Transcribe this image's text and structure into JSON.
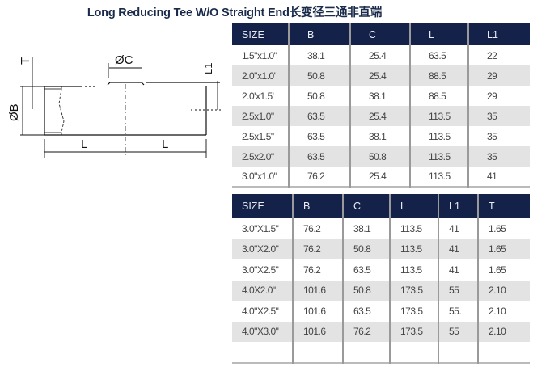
{
  "title": "Long Reducing Tee W/O Straight End长变径三通非直端",
  "drawing": {
    "labels": {
      "t": "T",
      "b": "ØB",
      "c": "ØC",
      "l1": "L1",
      "l_left": "L",
      "l_right": "L"
    }
  },
  "table1": {
    "headers": [
      "SIZE",
      "B",
      "C",
      "L",
      "L1"
    ],
    "rows": [
      [
        "1.5\"x1.0\"",
        "38.1",
        "25.4",
        "63.5",
        "22"
      ],
      [
        "2.0\"x1.0'",
        "50.8",
        "25.4",
        "88.5",
        "29"
      ],
      [
        "2.0'x1.5'",
        "50.8",
        "38.1",
        "88.5",
        "29"
      ],
      [
        "2.5x1.0\"",
        "63.5",
        "25.4",
        "113.5",
        "35"
      ],
      [
        "2.5x1.5\"",
        "63.5",
        "38.1",
        "113.5",
        "35"
      ],
      [
        "2.5x2.0\"",
        "63.5",
        "50.8",
        "113.5",
        "35"
      ],
      [
        "3.0\"x1.0\"",
        "76.2",
        "25.4",
        "113.5",
        "41"
      ]
    ]
  },
  "table2": {
    "headers": [
      "SIZE",
      "B",
      "C",
      "L",
      "L1",
      "T"
    ],
    "rows": [
      [
        "3.0\"X1.5\"",
        "76.2",
        "38.1",
        "113.5",
        "41",
        "1.65"
      ],
      [
        "3.0\"X2.0\"",
        "76.2",
        "50.8",
        "113.5",
        "41",
        "1.65"
      ],
      [
        "3.0\"X2.5\"",
        "76.2",
        "63.5",
        "113.5",
        "41",
        "1.65"
      ],
      [
        "4.0X2.0\"",
        "101.6",
        "50.8",
        "173.5",
        "55",
        "2.10"
      ],
      [
        "4.0\"X2.5\"",
        "101.6",
        "63.5",
        "173.5",
        "55.",
        "2.10"
      ],
      [
        "4.0\"X3.0\"",
        "101.6",
        "76.2",
        "173.5",
        "55",
        "2.10"
      ],
      [
        "",
        "",
        "",
        "",
        "",
        ""
      ]
    ]
  }
}
